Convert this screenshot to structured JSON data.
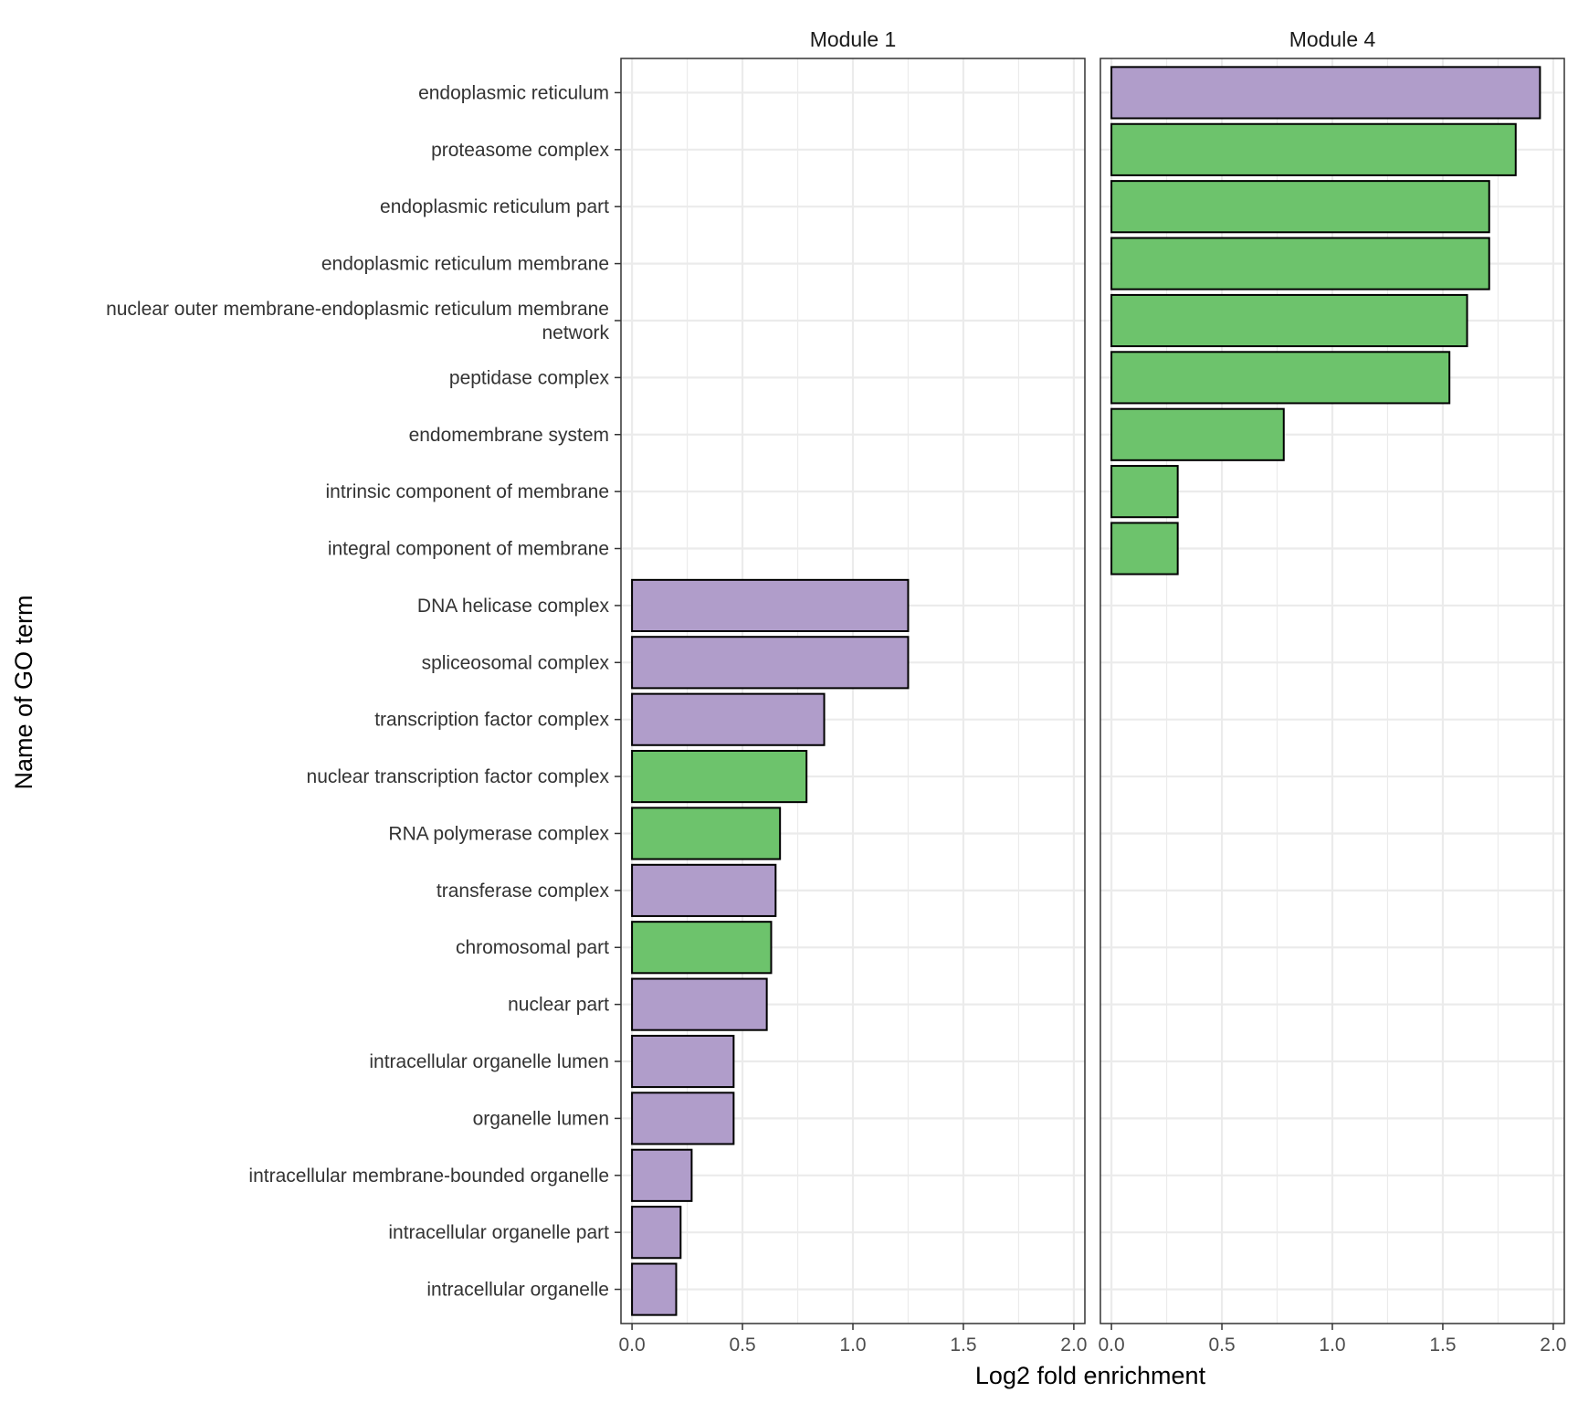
{
  "chart_data": {
    "type": "bar",
    "orientation": "horizontal",
    "facet": "panels",
    "xlabel": "Log2 fold enrichment",
    "ylabel": "Name of GO term",
    "xlim": [
      -0.05,
      2.05
    ],
    "xticks": [
      0.0,
      0.5,
      1.0,
      1.5,
      2.0
    ],
    "xtick_labels": [
      "0.0",
      "0.5",
      "1.0",
      "1.5",
      "2.0"
    ],
    "grid": true,
    "legend": "none",
    "categories": [
      "endoplasmic reticulum",
      "proteasome complex",
      "endoplasmic reticulum part",
      "endoplasmic reticulum membrane",
      "nuclear outer membrane-endoplasmic reticulum membrane network",
      "peptidase complex",
      "endomembrane system",
      "intrinsic component of membrane",
      "integral component of membrane",
      "DNA helicase complex",
      "spliceosomal complex",
      "transcription factor complex",
      "nuclear transcription factor complex",
      "RNA polymerase complex",
      "transferase complex",
      "chromosomal part",
      "nuclear part",
      "intracellular organelle lumen",
      "organelle lumen",
      "intracellular membrane-bounded organelle",
      "intracellular organelle part",
      "intracellular organelle"
    ],
    "category_display": [
      [
        "endoplasmic reticulum"
      ],
      [
        "proteasome complex"
      ],
      [
        "endoplasmic reticulum part"
      ],
      [
        "endoplasmic reticulum membrane"
      ],
      [
        "nuclear outer membrane-endoplasmic reticulum membrane",
        "network"
      ],
      [
        "peptidase complex"
      ],
      [
        "endomembrane system"
      ],
      [
        "intrinsic component of membrane"
      ],
      [
        "integral component of membrane"
      ],
      [
        "DNA helicase complex"
      ],
      [
        "spliceosomal complex"
      ],
      [
        "transcription factor complex"
      ],
      [
        "nuclear transcription factor complex"
      ],
      [
        "RNA polymerase complex"
      ],
      [
        "transferase complex"
      ],
      [
        "chromosomal part"
      ],
      [
        "nuclear part"
      ],
      [
        "intracellular organelle lumen"
      ],
      [
        "organelle lumen"
      ],
      [
        "intracellular membrane-bounded organelle"
      ],
      [
        "intracellular organelle part"
      ],
      [
        "intracellular organelle"
      ]
    ],
    "colors": {
      "purple": "#b09dca",
      "green": "#6dc36c",
      "outline": "#000000",
      "grid": "#ebebeb",
      "panel_border": "#333333"
    },
    "panels": [
      {
        "label": "Module 1",
        "bars": [
          {
            "category": "DNA helicase complex",
            "value": 1.25,
            "color": "purple"
          },
          {
            "category": "spliceosomal complex",
            "value": 1.25,
            "color": "purple"
          },
          {
            "category": "transcription factor complex",
            "value": 0.87,
            "color": "purple"
          },
          {
            "category": "nuclear transcription factor complex",
            "value": 0.79,
            "color": "green"
          },
          {
            "category": "RNA polymerase complex",
            "value": 0.67,
            "color": "green"
          },
          {
            "category": "transferase complex",
            "value": 0.65,
            "color": "purple"
          },
          {
            "category": "chromosomal part",
            "value": 0.63,
            "color": "green"
          },
          {
            "category": "nuclear part",
            "value": 0.61,
            "color": "purple"
          },
          {
            "category": "intracellular organelle lumen",
            "value": 0.46,
            "color": "purple"
          },
          {
            "category": "organelle lumen",
            "value": 0.46,
            "color": "purple"
          },
          {
            "category": "intracellular membrane-bounded organelle",
            "value": 0.27,
            "color": "purple"
          },
          {
            "category": "intracellular organelle part",
            "value": 0.22,
            "color": "purple"
          },
          {
            "category": "intracellular organelle",
            "value": 0.2,
            "color": "purple"
          }
        ]
      },
      {
        "label": "Module 4",
        "bars": [
          {
            "category": "endoplasmic reticulum",
            "value": 1.94,
            "color": "purple"
          },
          {
            "category": "proteasome complex",
            "value": 1.83,
            "color": "green"
          },
          {
            "category": "endoplasmic reticulum part",
            "value": 1.71,
            "color": "green"
          },
          {
            "category": "endoplasmic reticulum membrane",
            "value": 1.71,
            "color": "green"
          },
          {
            "category": "nuclear outer membrane-endoplasmic reticulum membrane network",
            "value": 1.61,
            "color": "green"
          },
          {
            "category": "peptidase complex",
            "value": 1.53,
            "color": "green"
          },
          {
            "category": "endomembrane system",
            "value": 0.78,
            "color": "green"
          },
          {
            "category": "intrinsic component of membrane",
            "value": 0.3,
            "color": "green"
          },
          {
            "category": "integral component of membrane",
            "value": 0.3,
            "color": "green"
          }
        ]
      }
    ]
  }
}
